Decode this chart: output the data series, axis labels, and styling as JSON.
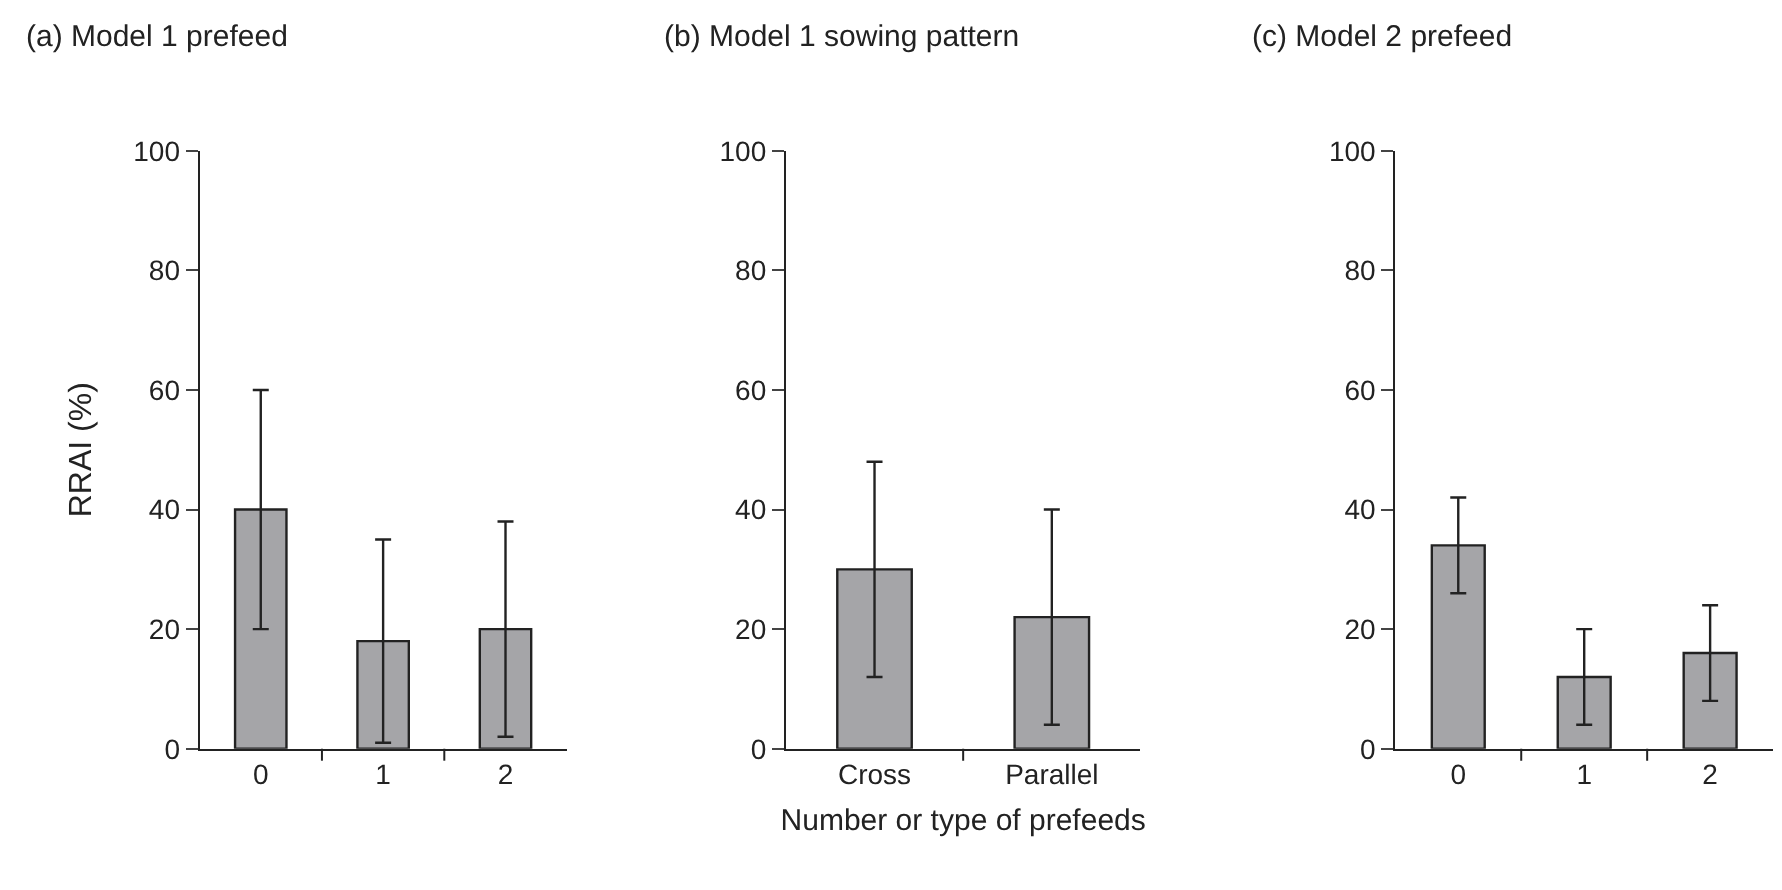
{
  "chart_data": [
    {
      "type": "bar",
      "title": "(a) Model 1 prefeed",
      "ylabel": "RRAI (%)",
      "categories": [
        "0",
        "1",
        "2"
      ],
      "values": [
        40,
        18,
        20
      ],
      "errors": [
        [
          20,
          60
        ],
        [
          1,
          35
        ],
        [
          2,
          38
        ]
      ],
      "color": "#a5a5a8",
      "ylim": [
        0,
        100
      ],
      "yticks": [
        0,
        20,
        40,
        60,
        80,
        100
      ]
    },
    {
      "type": "bar",
      "title": "(b) Model 1 sowing pattern",
      "xlabel": "Number or type of prefeeds",
      "categories": [
        "Cross",
        "Parallel"
      ],
      "values": [
        30,
        22
      ],
      "errors": [
        [
          12,
          48
        ],
        [
          4,
          40
        ]
      ],
      "color": "#a5a5a8",
      "ylim": [
        0,
        100
      ],
      "yticks": [
        0,
        20,
        40,
        60,
        80,
        100
      ]
    },
    {
      "type": "bar",
      "title": "(c) Model 2 prefeed",
      "categories": [
        "0",
        "1",
        "2"
      ],
      "values": [
        34,
        12,
        16
      ],
      "errors": [
        [
          26,
          42
        ],
        [
          4,
          20
        ],
        [
          8,
          24
        ]
      ],
      "color": "#a5a5a8",
      "ylim": [
        0,
        100
      ],
      "yticks": [
        0,
        20,
        40,
        60,
        80,
        100
      ]
    }
  ]
}
